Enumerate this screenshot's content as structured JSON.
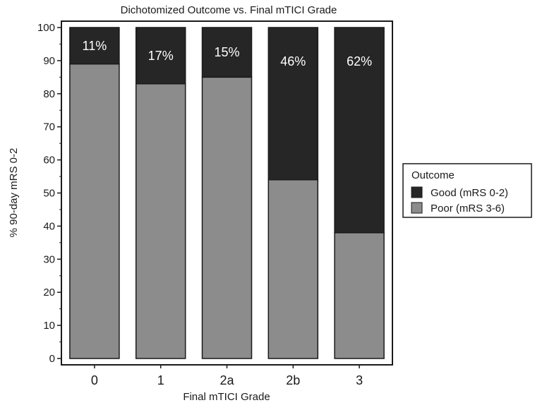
{
  "chart_data": {
    "type": "bar",
    "stacked": true,
    "title": "Dichotomized Outcome vs. Final mTICI Grade",
    "xlabel": "Final mTICI Grade",
    "ylabel": "% 90-day mRS 0-2",
    "categories": [
      "0",
      "1",
      "2a",
      "2b",
      "3"
    ],
    "ylim": [
      0,
      100
    ],
    "yticks": [
      0,
      10,
      20,
      30,
      40,
      50,
      60,
      70,
      80,
      90,
      100
    ],
    "series": [
      {
        "name": "Poor (mRS 3-6)",
        "values": [
          89,
          83,
          85,
          54,
          38
        ],
        "color": "#8c8c8c"
      },
      {
        "name": "Good (mRS 0-2)",
        "values": [
          11,
          17,
          15,
          46,
          62
        ],
        "color": "#262626"
      }
    ],
    "data_labels": [
      "11%",
      "17%",
      "15%",
      "46%",
      "62%"
    ],
    "legend": {
      "title": "Outcome",
      "placement": "right",
      "entries": [
        "Good (mRS 0-2)",
        "Poor (mRS 3-6)"
      ]
    },
    "grid": false
  }
}
